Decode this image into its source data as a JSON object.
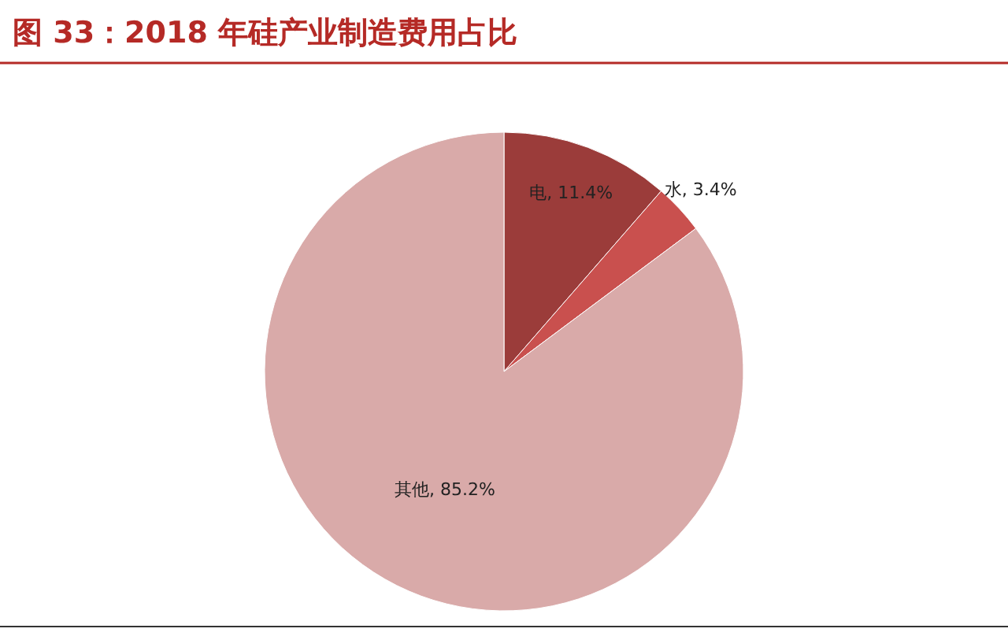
{
  "chart_data": {
    "type": "pie",
    "title": "图 33：2018 年硅产业制造费用占比",
    "categories": [
      "电",
      "水",
      "其他"
    ],
    "values": [
      11.4,
      3.4,
      85.2
    ],
    "value_labels": [
      "11.4%",
      "3.4%",
      "85.2%"
    ],
    "colors": [
      "#9b3c3a",
      "#c9504e",
      "#d9aaa9"
    ],
    "legend": false
  }
}
